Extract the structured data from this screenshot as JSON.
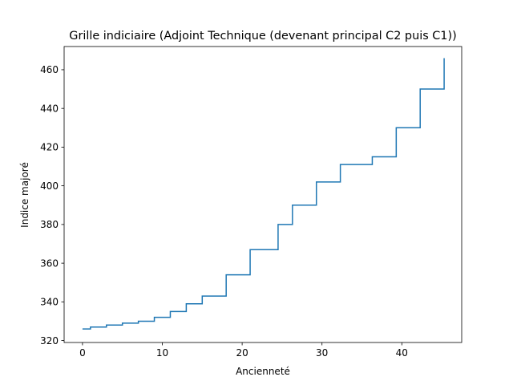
{
  "chart_data": {
    "type": "line",
    "title": "Grille indiciaire (Adjoint Technique (devenant principal C2 puis C1))",
    "xlabel": "Ancienneté",
    "ylabel": "Indice majoré",
    "xlim": [
      -2.3,
      47.5
    ],
    "ylim": [
      319,
      472
    ],
    "xticks": [
      0,
      10,
      20,
      30,
      40
    ],
    "yticks": [
      320,
      340,
      360,
      380,
      400,
      420,
      440,
      460
    ],
    "grid": false,
    "step_where": "post",
    "series": [
      {
        "color": "#1f77b4",
        "x": [
          0,
          1,
          3,
          5,
          7,
          9,
          11,
          13,
          15,
          18,
          21,
          24.5,
          26.3,
          29.3,
          32.3,
          36.3,
          39.3,
          42.3,
          45.3
        ],
        "y": [
          326,
          327,
          328,
          329,
          330,
          332,
          335,
          339,
          343,
          354,
          367,
          380,
          390,
          402,
          411,
          415,
          430,
          450,
          466
        ]
      }
    ]
  }
}
